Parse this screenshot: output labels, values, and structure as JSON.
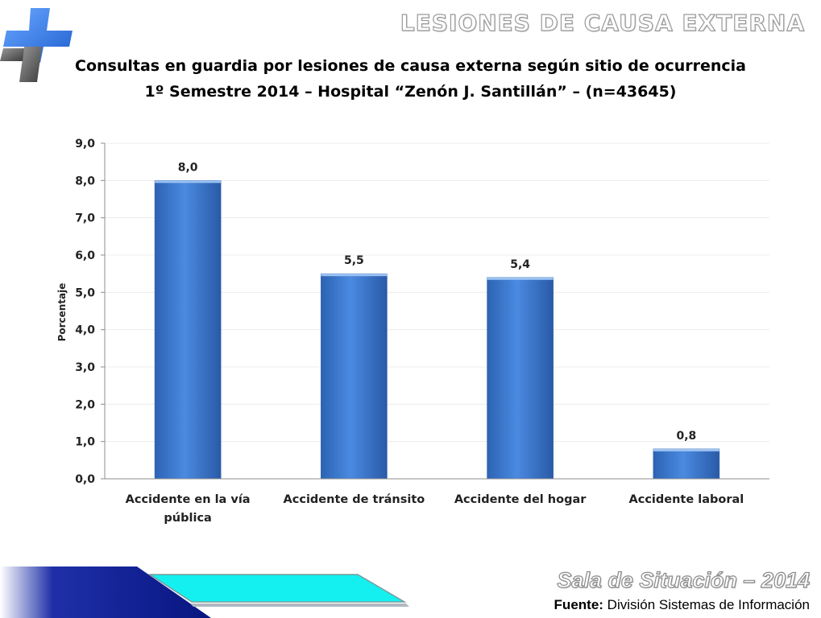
{
  "header": {
    "section_title": "LESIONES DE CAUSA EXTERNA",
    "logo_icon": "hospital-cross-icon"
  },
  "chart_data": {
    "type": "bar",
    "title": "Consultas en guardia por lesiones de causa externa según sitio de ocurrencia",
    "subtitle": "1º Semestre 2014 – Hospital “Zenón J. Santillán” – (n=43645)",
    "ylabel": "Porcentaje",
    "xlabel": "",
    "ylim": [
      0,
      9
    ],
    "yticks": [
      "0,0",
      "1,0",
      "2,0",
      "3,0",
      "4,0",
      "5,0",
      "6,0",
      "7,0",
      "8,0",
      "9,0"
    ],
    "categories": [
      [
        "Accidente en la vía",
        "pública"
      ],
      [
        "Accidente de tránsito"
      ],
      [
        "Accidente del hogar"
      ],
      [
        "Accidente laboral"
      ]
    ],
    "values": [
      8.0,
      5.5,
      5.4,
      0.8
    ],
    "data_labels": [
      "8,0",
      "5,5",
      "5,4",
      "0,8"
    ],
    "bar_color": "#3f7ccf",
    "grid": true
  },
  "footer": {
    "brand": "Sala de Situación – 2014",
    "source_label": "Fuente:",
    "source_text": "División Sistemas de Información",
    "colors": {
      "navy": "#0b1a8a",
      "cyan": "#14f0f0"
    }
  }
}
